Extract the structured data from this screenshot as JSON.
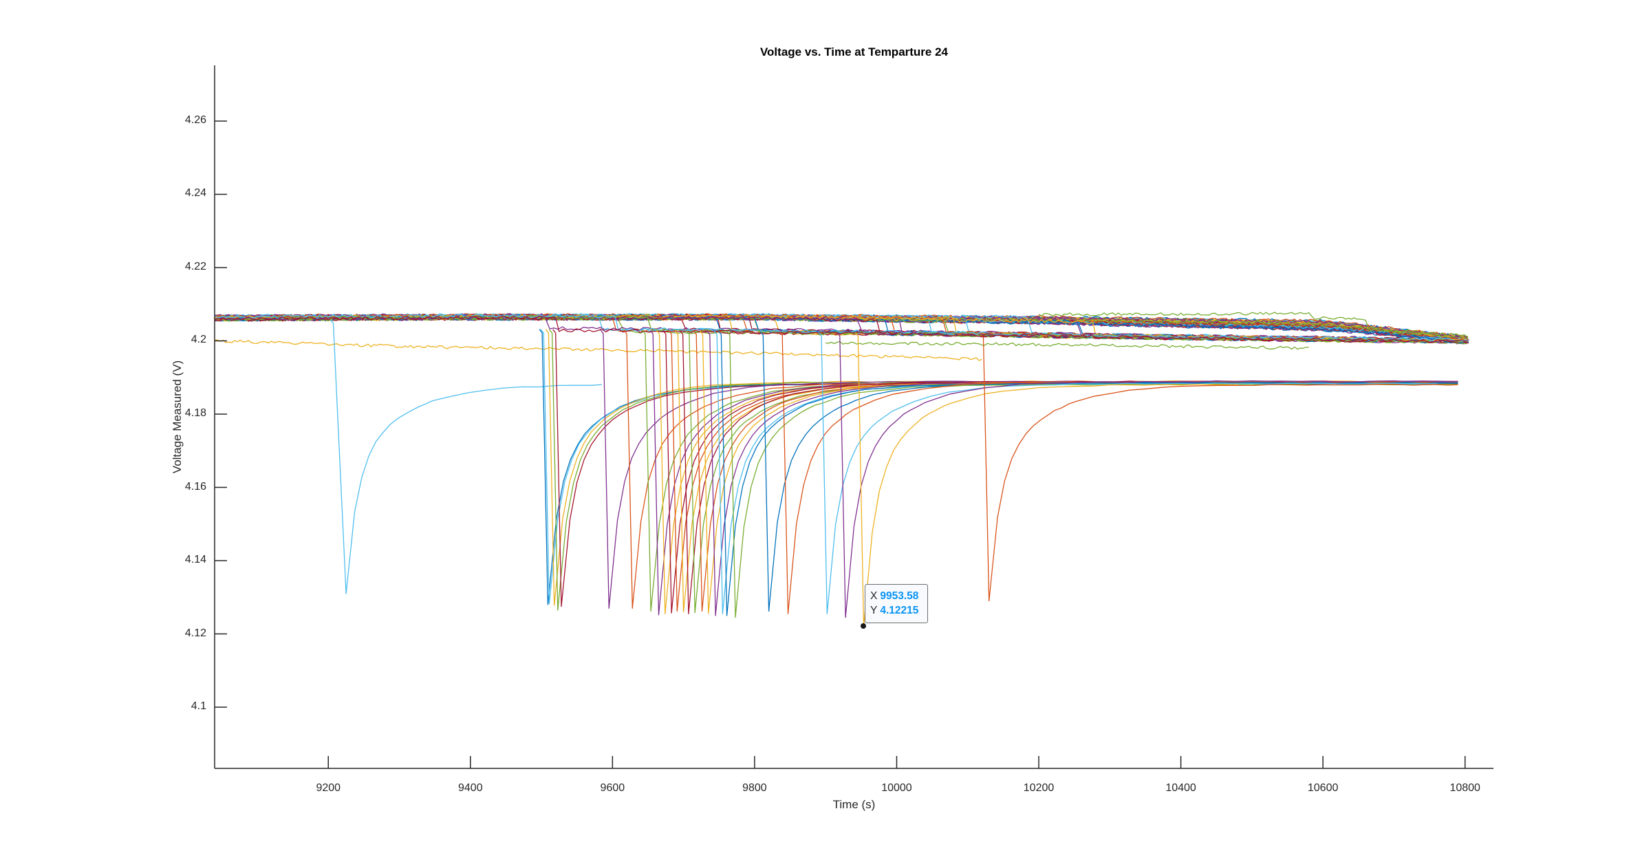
{
  "figure": {
    "title": "Voltage vs. Time at Temparture 24",
    "xlabel": "Time (s)",
    "ylabel": "Voltage Measured (V)"
  },
  "axes": {
    "xlim": [
      9040,
      10840
    ],
    "ylim": [
      4.0833,
      4.2752
    ],
    "xticks": [
      "9200",
      "9400",
      "9600",
      "9800",
      "10000",
      "10200",
      "10400",
      "10600",
      "10800"
    ],
    "yticks": [
      "4.1",
      "4.12",
      "4.14",
      "4.16",
      "4.18",
      "4.2",
      "4.22",
      "4.24",
      "4.26"
    ],
    "grid": false,
    "box": false
  },
  "datatip": {
    "x_label": "X",
    "x_value": "9953.58",
    "y_label": "Y",
    "y_value": "4.12215"
  },
  "colors": {
    "palette": [
      "#0072bd",
      "#d95319",
      "#edb120",
      "#7e2f8e",
      "#77ac30",
      "#4dbeee",
      "#a2142f"
    ],
    "datatip_value": "#0a95f5",
    "axis": "#262626"
  },
  "chart_data": {
    "type": "line",
    "title": "Voltage vs. Time at Temparture 24",
    "xlabel": "Time (s)",
    "ylabel": "Voltage Measured (V)",
    "xlim": [
      9040,
      10840
    ],
    "ylim": [
      4.0833,
      4.2752
    ],
    "grid": false,
    "legend": null,
    "description": "Many overlapping battery-cycle traces. Plateau band near 4.205-4.207 V slowly declining to ~4.201 V by 10800 s; each trace drops sharply to ~4.122-4.131 V at its discharge time and then recovers asymptotically to ~4.188-4.189 V.",
    "annotations": [
      {
        "type": "datatip",
        "x": 9953.58,
        "y": 4.12215
      }
    ],
    "plateau_band": {
      "x": [
        9040,
        9400,
        9800,
        10200,
        10600,
        10806
      ],
      "upper": [
        4.207,
        4.2072,
        4.2072,
        4.2068,
        4.206,
        4.2012
      ],
      "lower": [
        4.2055,
        4.2058,
        4.2058,
        4.2045,
        4.2025,
        4.1998
      ]
    },
    "lower_shelf": {
      "x": [
        9300,
        9600,
        10000,
        10400,
        10800
      ],
      "y": [
        4.2035,
        4.203,
        4.2022,
        4.201,
        4.2
      ]
    },
    "extra_traces": [
      {
        "name": "yellow-low-plateau",
        "color": "#edb120",
        "x": [
          9040,
          9300,
          9600,
          9900,
          10120
        ],
        "y": [
          4.2,
          4.1985,
          4.1975,
          4.1962,
          4.195
        ]
      },
      {
        "name": "green-low-plateau",
        "color": "#77ac30",
        "x": [
          9900,
          10200,
          10580
        ],
        "y": [
          4.1995,
          4.199,
          4.198
        ]
      },
      {
        "name": "green-step-trace",
        "color": "#77ac30",
        "x": [
          10200,
          10580,
          10585,
          10660,
          10665,
          10800
        ],
        "y": [
          4.2072,
          4.2075,
          4.2062,
          4.206,
          4.203,
          4.2015
        ]
      }
    ],
    "dips": [
      {
        "t": 9225,
        "min": 4.131,
        "end": 9585,
        "color": "#4dbeee",
        "drop_from": 9207
      },
      {
        "t": 9509,
        "min": 4.128,
        "end": 10760,
        "color": "#0072bd"
      },
      {
        "t": 9511,
        "min": 4.1282,
        "end": 10760,
        "color": "#4dbeee"
      },
      {
        "t": 9518,
        "min": 4.1278,
        "end": 10760,
        "color": "#edb120"
      },
      {
        "t": 9523,
        "min": 4.1265,
        "end": 10760,
        "color": "#77ac30"
      },
      {
        "t": 9528,
        "min": 4.1275,
        "end": 10760,
        "color": "#a2142f"
      },
      {
        "t": 9595,
        "min": 4.127,
        "end": 10790,
        "color": "#7e2f8e"
      },
      {
        "t": 9628,
        "min": 4.127,
        "end": 10790,
        "color": "#d95319"
      },
      {
        "t": 9654,
        "min": 4.1262,
        "end": 10790,
        "color": "#77ac30"
      },
      {
        "t": 9665,
        "min": 4.1252,
        "end": 10790,
        "color": "#7e2f8e"
      },
      {
        "t": 9674,
        "min": 4.1255,
        "end": 10790,
        "color": "#edb120"
      },
      {
        "t": 9683,
        "min": 4.1257,
        "end": 10790,
        "color": "#a2142f"
      },
      {
        "t": 9691,
        "min": 4.1262,
        "end": 10790,
        "color": "#d95319"
      },
      {
        "t": 9700,
        "min": 4.126,
        "end": 10790,
        "color": "#edb120"
      },
      {
        "t": 9707,
        "min": 4.1255,
        "end": 10790,
        "color": "#a2142f"
      },
      {
        "t": 9716,
        "min": 4.1258,
        "end": 10790,
        "color": "#77ac30"
      },
      {
        "t": 9726,
        "min": 4.1262,
        "end": 10790,
        "color": "#d95319"
      },
      {
        "t": 9735,
        "min": 4.1256,
        "end": 10790,
        "color": "#edb120"
      },
      {
        "t": 9745,
        "min": 4.125,
        "end": 10790,
        "color": "#7e2f8e"
      },
      {
        "t": 9755,
        "min": 4.1255,
        "end": 10790,
        "color": "#4dbeee"
      },
      {
        "t": 9761,
        "min": 4.125,
        "end": 10790,
        "color": "#0072bd"
      },
      {
        "t": 9773,
        "min": 4.1245,
        "end": 10790,
        "color": "#77ac30"
      },
      {
        "t": 9820,
        "min": 4.1262,
        "end": 10790,
        "color": "#0072bd"
      },
      {
        "t": 9847,
        "min": 4.1255,
        "end": 10790,
        "color": "#d95319"
      },
      {
        "t": 9902,
        "min": 4.1255,
        "end": 10760,
        "color": "#4dbeee"
      },
      {
        "t": 9928,
        "min": 4.1245,
        "end": 10790,
        "color": "#7e2f8e"
      },
      {
        "t": 9953.58,
        "min": 4.12215,
        "end": 10480,
        "color": "#edb120"
      },
      {
        "t": 10130,
        "min": 4.129,
        "end": 10790,
        "color": "#d95319"
      }
    ],
    "recovery_target": 4.1885
  }
}
